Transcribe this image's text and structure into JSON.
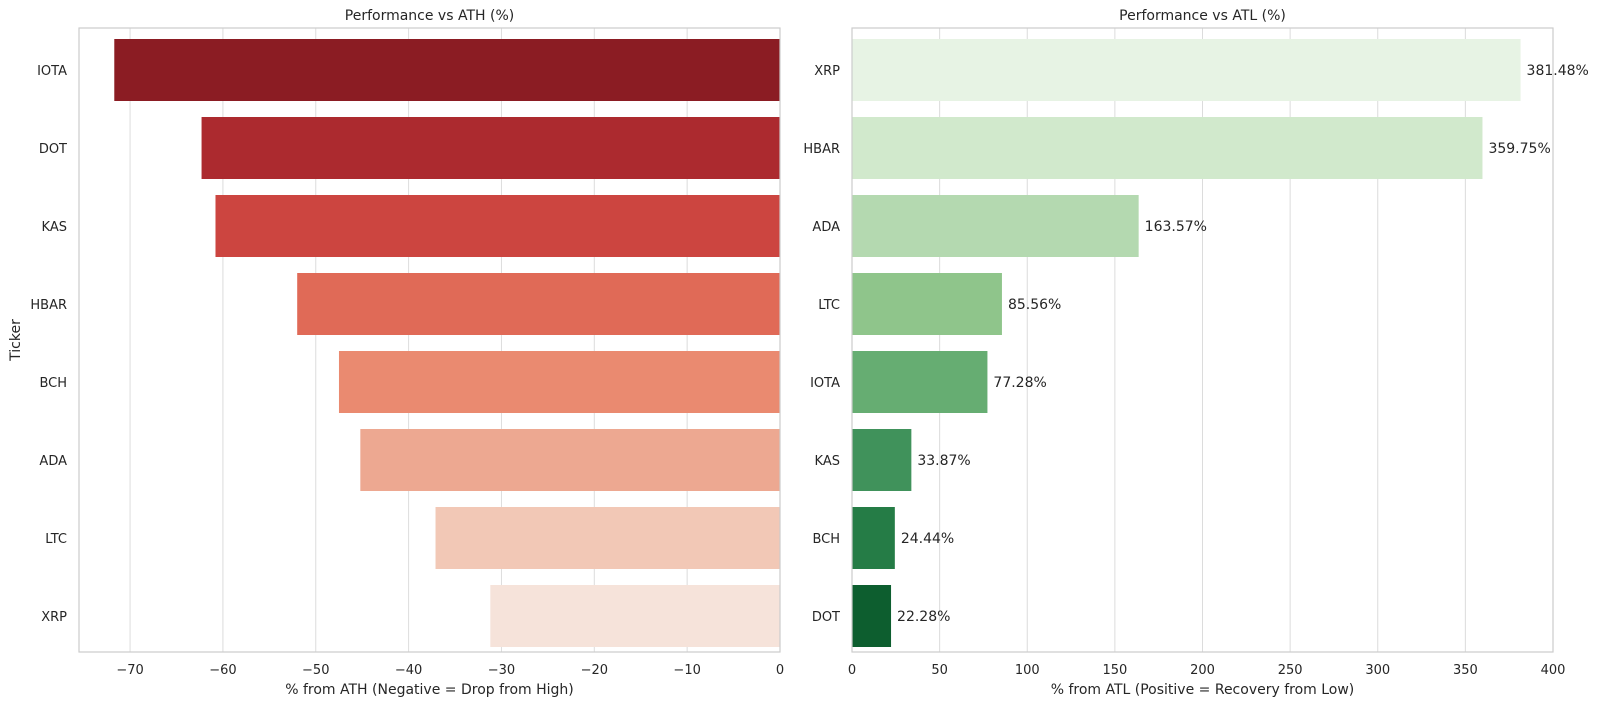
{
  "chart_data": [
    {
      "type": "bar",
      "orientation": "horizontal",
      "title": "Performance vs ATH (%)",
      "xlabel": "% from ATH (Negative = Drop from High)",
      "ylabel": "Ticker",
      "categories": [
        "IOTA",
        "DOT",
        "KAS",
        "HBAR",
        "BCH",
        "ADA",
        "LTC",
        "XRP"
      ],
      "values": [
        -71.7,
        -62.3,
        -60.8,
        -52.0,
        -47.5,
        -45.2,
        -37.1,
        -31.2
      ],
      "xlim": [
        -75.5,
        0
      ],
      "xticks": [
        -70,
        -60,
        -50,
        -40,
        -30,
        -20,
        -10,
        0
      ],
      "xtick_labels": [
        "−70",
        "−60",
        "−50",
        "−40",
        "−30",
        "−20",
        "−10",
        "0"
      ],
      "colors": [
        "#8b1c23",
        "#ac2a2f",
        "#cc4540",
        "#e06a57",
        "#ea8a70",
        "#eda891",
        "#f2c8b6",
        "#f6e3da"
      ],
      "grid": true
    },
    {
      "type": "bar",
      "orientation": "horizontal",
      "title": "Performance vs ATL (%)",
      "xlabel": "% from ATL (Positive = Recovery from Low)",
      "ylabel": "",
      "categories": [
        "XRP",
        "HBAR",
        "ADA",
        "LTC",
        "IOTA",
        "KAS",
        "BCH",
        "DOT"
      ],
      "values": [
        381.48,
        359.75,
        163.57,
        85.56,
        77.28,
        33.87,
        24.44,
        22.28
      ],
      "data_labels": [
        "381.48%",
        "359.75%",
        "163.57%",
        "85.56%",
        "77.28%",
        "33.87%",
        "24.44%",
        "22.28%"
      ],
      "xlim": [
        0,
        400
      ],
      "xticks": [
        0,
        50,
        100,
        150,
        200,
        250,
        300,
        350,
        400
      ],
      "xtick_labels": [
        "0",
        "50",
        "100",
        "150",
        "200",
        "250",
        "300",
        "350",
        "400"
      ],
      "colors": [
        "#e7f3e4",
        "#d1e9cc",
        "#b4d9b0",
        "#8fc58b",
        "#66ad72",
        "#40925b",
        "#257c46",
        "#0d5e2f"
      ],
      "grid": true
    }
  ]
}
